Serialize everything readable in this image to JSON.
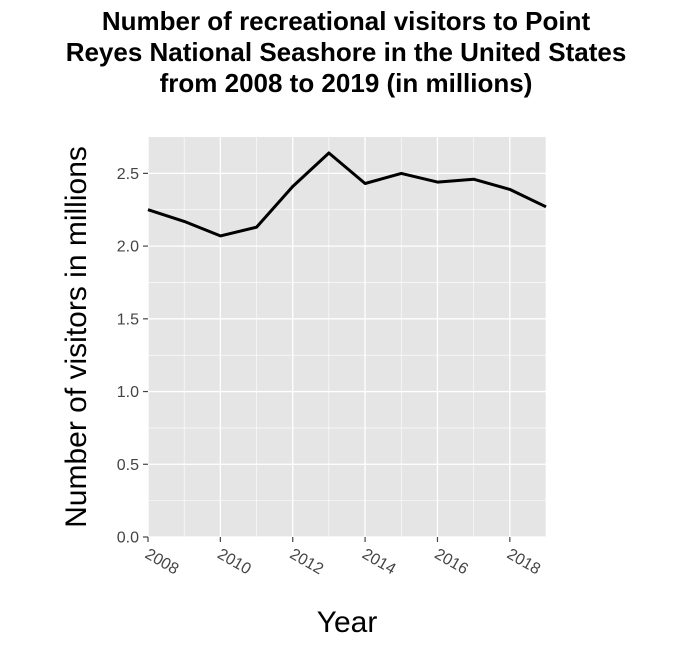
{
  "chart_data": {
    "type": "line",
    "title_lines": [
      "Number of recreational visitors to Point",
      "Reyes National Seashore in the United States",
      "from 2008 to 2019 (in millions)"
    ],
    "xlabel": "Year",
    "ylabel": "Number of visitors in millions",
    "x": [
      2008,
      2009,
      2010,
      2011,
      2012,
      2013,
      2014,
      2015,
      2016,
      2017,
      2018,
      2019
    ],
    "series": [
      {
        "values": [
          2.25,
          2.17,
          2.07,
          2.13,
          2.41,
          2.64,
          2.43,
          2.5,
          2.44,
          2.46,
          2.39,
          2.27
        ]
      }
    ],
    "xlim": [
      2008,
      2019
    ],
    "ylim": [
      0,
      2.75
    ],
    "xticks": [
      2008,
      2010,
      2012,
      2014,
      2016,
      2018
    ],
    "yticks": [
      0.0,
      0.5,
      1.0,
      1.5,
      2.0,
      2.5
    ],
    "ytick_labels": [
      "0.0",
      "0.5",
      "1.0",
      "1.5",
      "2.0",
      "2.5"
    ],
    "grid": true,
    "colors": {
      "panel": "#e5e5e5",
      "grid": "#ffffff",
      "line": "#000000",
      "tick": "#444444"
    }
  }
}
